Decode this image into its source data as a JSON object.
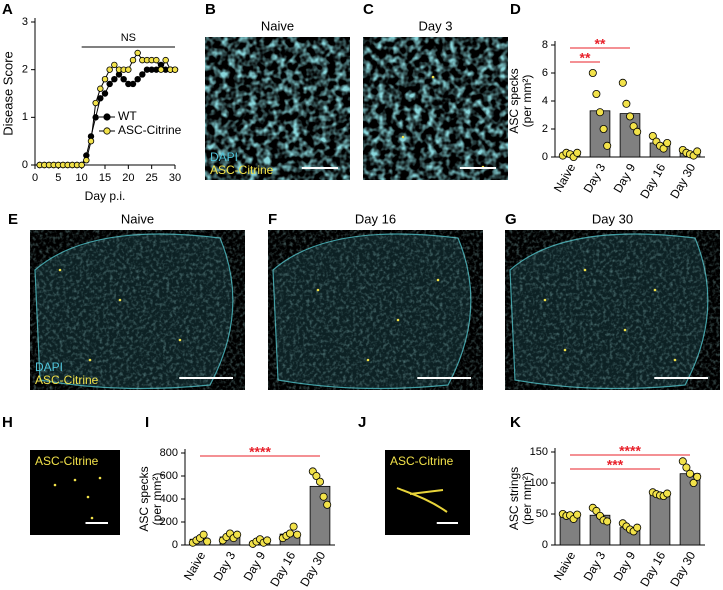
{
  "chart_data": [
    {
      "type": "line",
      "panel": "A",
      "y_label": "Disease Score",
      "x_label": "Day p.i.",
      "annotation": "NS",
      "x": [
        1,
        2,
        3,
        4,
        5,
        6,
        7,
        8,
        9,
        10,
        11,
        12,
        13,
        14,
        15,
        16,
        17,
        18,
        19,
        20,
        21,
        22,
        23,
        24,
        25,
        26,
        27,
        28,
        29,
        30
      ],
      "xlim": [
        0,
        30
      ],
      "xticks": [
        0,
        5,
        10,
        15,
        20,
        25,
        30
      ],
      "ylim": [
        0,
        3
      ],
      "yticks": [
        0,
        1,
        2,
        3
      ],
      "series": [
        {
          "name": "WT",
          "color": "#000000",
          "values": [
            0,
            0,
            0,
            0,
            0,
            0,
            0,
            0,
            0,
            0,
            0.2,
            0.6,
            1.0,
            1.4,
            1.5,
            1.7,
            1.8,
            1.9,
            1.8,
            1.7,
            1.7,
            1.8,
            1.9,
            2.0,
            2.0,
            2.0,
            2.1,
            2.0,
            2.0,
            2.0
          ]
        },
        {
          "name": "ASC-Citrine",
          "color": "#f2e24a",
          "values": [
            0,
            0,
            0,
            0,
            0,
            0,
            0,
            0,
            0,
            0,
            0.1,
            0.5,
            1.3,
            1.6,
            1.8,
            2.0,
            2.1,
            2.0,
            2.0,
            2.0,
            2.2,
            2.35,
            2.2,
            2.2,
            2.2,
            2.2,
            2.0,
            2.2,
            2.0,
            2.0
          ]
        }
      ]
    },
    {
      "type": "bar",
      "panel": "D",
      "y_label": "ASC specks",
      "y_label_unit": "(per mm²)",
      "color": "#808080",
      "point_color": "#f2e24a",
      "categories": [
        "Naive",
        "Day 3",
        "Day 9",
        "Day 16",
        "Day 30"
      ],
      "values": [
        0.2,
        3.3,
        3.1,
        1.0,
        0.3
      ],
      "points": [
        [
          0.1,
          0.3,
          0.2,
          0.0,
          0.3
        ],
        [
          6.0,
          4.5,
          3.2,
          2.0,
          0.8
        ],
        [
          5.3,
          3.8,
          2.9,
          2.2,
          1.8
        ],
        [
          1.5,
          1.1,
          0.8,
          0.6,
          1.0
        ],
        [
          0.5,
          0.3,
          0.2,
          0.1,
          0.4
        ]
      ],
      "ylim": [
        0,
        8
      ],
      "yticks": [
        0,
        2,
        4,
        6,
        8
      ],
      "annotations": [
        "**",
        "**"
      ],
      "annotation_color": "#e8202a"
    },
    {
      "type": "bar",
      "panel": "I",
      "y_label": "ASC specks",
      "y_label_unit": "(per mm²)",
      "color": "#808080",
      "point_color": "#f2e24a",
      "categories": [
        "Naive",
        "Day 3",
        "Day 9",
        "Day 16",
        "Day 30"
      ],
      "values": [
        50,
        70,
        30,
        95,
        510
      ],
      "points": [
        [
          20,
          40,
          60,
          90,
          30
        ],
        [
          40,
          70,
          100,
          60,
          90
        ],
        [
          10,
          30,
          50,
          20,
          40
        ],
        [
          60,
          80,
          100,
          160,
          90
        ],
        [
          640,
          600,
          550,
          420,
          350
        ]
      ],
      "ylim": [
        0,
        800
      ],
      "yticks": [
        0,
        200,
        400,
        600,
        800
      ],
      "annotations": [
        "****"
      ],
      "annotation_color": "#e8202a"
    },
    {
      "type": "bar",
      "panel": "K",
      "y_label": "ASC strings",
      "y_label_unit": "(per mm²)",
      "color": "#808080",
      "point_color": "#f2e24a",
      "categories": [
        "Naive",
        "Day 3",
        "Day 9",
        "Day 16",
        "Day 30"
      ],
      "values": [
        47,
        48,
        28,
        82,
        115
      ],
      "points": [
        [
          50,
          47,
          48,
          42,
          49
        ],
        [
          60,
          55,
          47,
          40,
          38
        ],
        [
          35,
          30,
          25,
          22,
          28
        ],
        [
          85,
          82,
          80,
          79,
          83
        ],
        [
          135,
          125,
          115,
          100,
          110
        ]
      ],
      "ylim": [
        0,
        150
      ],
      "yticks": [
        0,
        50,
        100,
        150
      ],
      "annotations": [
        "****",
        "***"
      ],
      "annotation_color": "#e8202a"
    }
  ],
  "images": [
    {
      "panel": "B",
      "title": "Naive",
      "labels": [
        "DAPI",
        "ASC-Citrine"
      ]
    },
    {
      "panel": "C",
      "title": "Day 3"
    },
    {
      "panel": "E",
      "title": "Naive",
      "labels": [
        "DAPI",
        "ASC-Citrine"
      ]
    },
    {
      "panel": "F",
      "title": "Day 16"
    },
    {
      "panel": "G",
      "title": "Day 30"
    },
    {
      "panel": "H",
      "labels": [
        "ASC-Citrine"
      ]
    },
    {
      "panel": "J",
      "labels": [
        "ASC-Citrine"
      ]
    }
  ],
  "label_colors": [
    "#4fc3d9",
    "#f2e24a"
  ]
}
